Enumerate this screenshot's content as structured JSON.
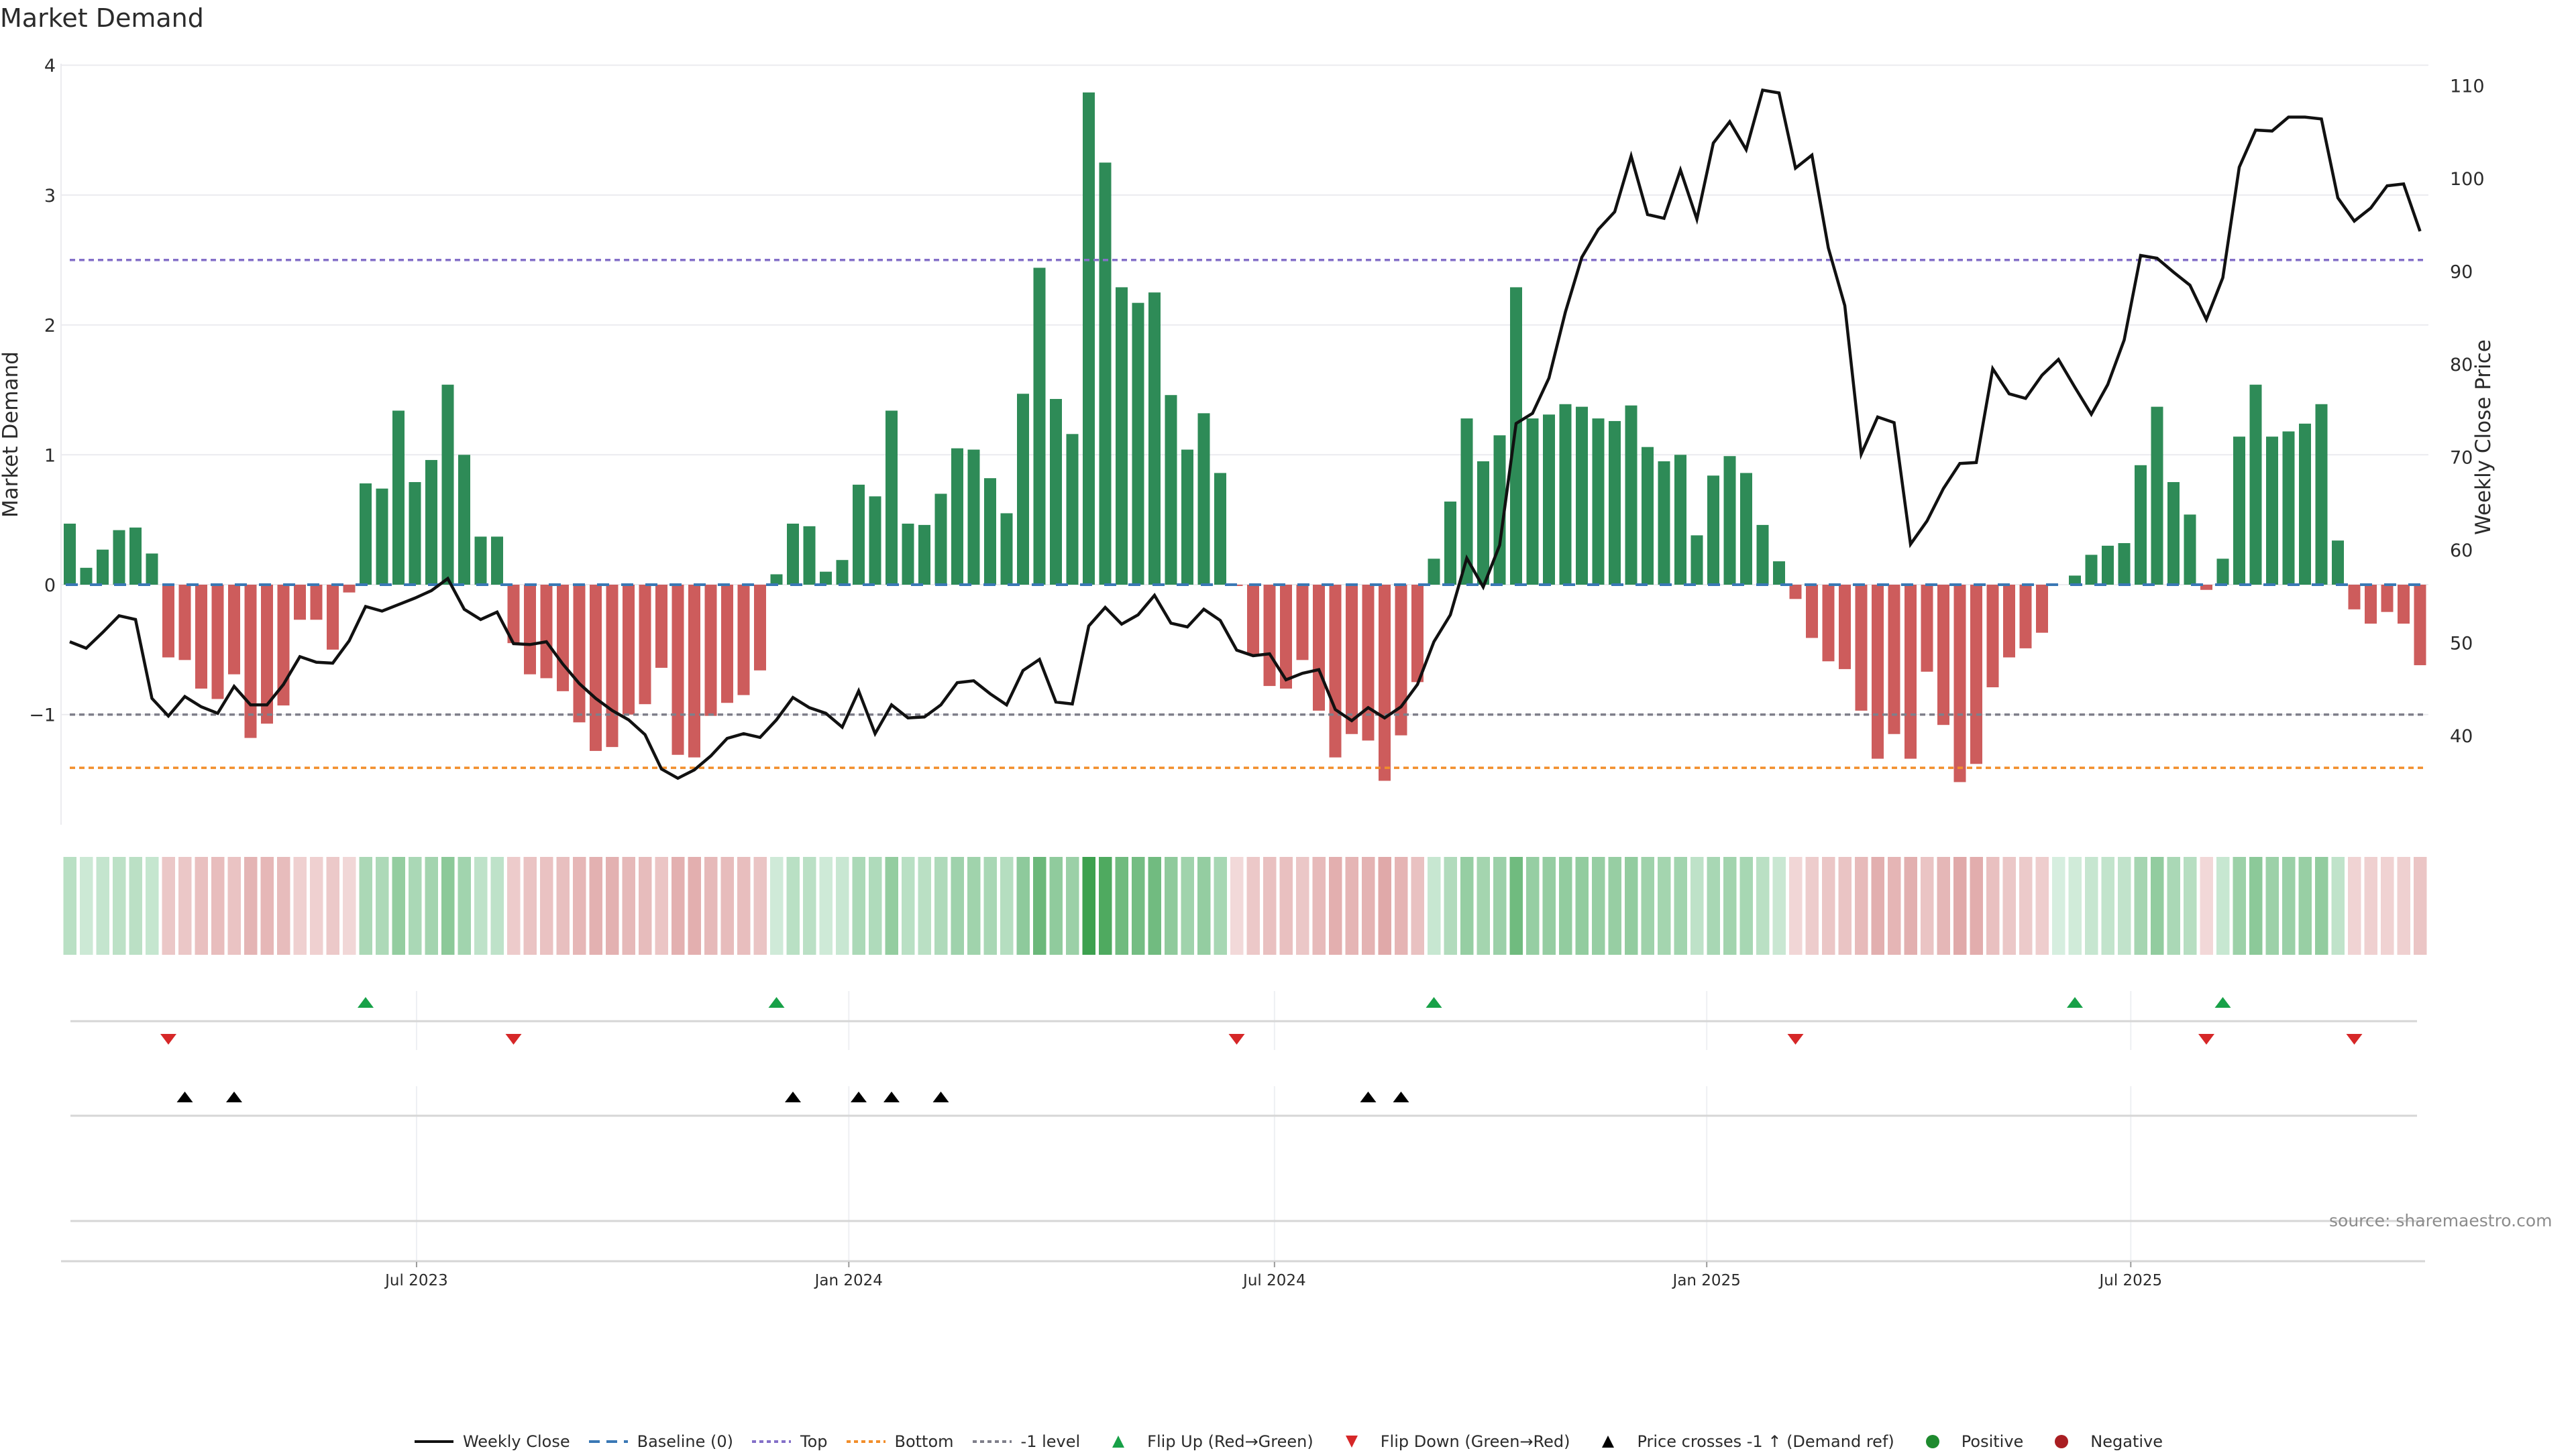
{
  "chart_data": {
    "type": "bar+line",
    "title": "Market Demand",
    "ylabel": "Market Demand",
    "y2label": "Weekly Close Price",
    "ylim": [
      -1.8,
      4.0
    ],
    "y2lim": [
      32.5,
      112.0
    ],
    "yticks": [
      "4",
      "3",
      "2",
      "1",
      "0",
      "−1"
    ],
    "ytick_values": [
      4,
      3,
      2,
      1,
      0,
      -1
    ],
    "y2ticks": [
      "110",
      "100",
      "90",
      "80",
      "70",
      "60",
      "50",
      "40"
    ],
    "y2tick_values": [
      110,
      100,
      90,
      80,
      70,
      60,
      50,
      40
    ],
    "xticks": [
      "Jul 2023",
      "Jan 2024",
      "Jul 2024",
      "Jan 2025",
      "Jul 2025"
    ],
    "xtick_week_index": [
      21.1,
      47.4,
      73.3,
      99.6,
      125.4
    ],
    "frequency": "weekly",
    "n_weeks": 144,
    "levels": {
      "baseline": 0,
      "top": 2.5,
      "bottom": -1.41,
      "minus_one": -1
    },
    "series": [
      {
        "name": "Market Demand",
        "type": "bar",
        "axis": "left",
        "values": [
          0.47,
          0.13,
          0.27,
          0.42,
          0.44,
          0.24,
          -0.56,
          -0.58,
          -0.8,
          -0.88,
          -0.69,
          -1.18,
          -1.07,
          -0.93,
          -0.27,
          -0.27,
          -0.5,
          -0.06,
          0.78,
          0.74,
          1.34,
          0.79,
          0.96,
          1.54,
          1.0,
          0.37,
          0.37,
          -0.45,
          -0.69,
          -0.72,
          -0.82,
          -1.06,
          -1.28,
          -1.25,
          -1.0,
          -0.92,
          -0.64,
          -1.31,
          -1.33,
          -1.01,
          -0.91,
          -0.85,
          -0.66,
          0.08,
          0.47,
          0.45,
          0.1,
          0.19,
          0.77,
          0.68,
          1.34,
          0.47,
          0.46,
          0.7,
          1.05,
          1.04,
          0.82,
          0.55,
          1.47,
          2.44,
          1.43,
          1.16,
          3.79,
          3.25,
          2.29,
          2.17,
          2.25,
          1.46,
          1.04,
          1.32,
          0.86,
          -0.01,
          -0.54,
          -0.78,
          -0.8,
          -0.58,
          -0.97,
          -1.33,
          -1.15,
          -1.2,
          -1.51,
          -1.16,
          -0.75,
          0.2,
          0.64,
          1.28,
          0.95,
          1.15,
          2.29,
          1.28,
          1.31,
          1.39,
          1.37,
          1.28,
          1.26,
          1.38,
          1.06,
          0.95,
          1.0,
          0.38,
          0.84,
          0.99,
          0.86,
          0.46,
          0.18,
          -0.11,
          -0.41,
          -0.59,
          -0.65,
          -0.97,
          -1.34,
          -1.15,
          -1.34,
          -0.67,
          -1.08,
          -1.52,
          -1.38,
          -0.79,
          -0.56,
          -0.49,
          -0.37,
          0.0,
          0.07,
          0.23,
          0.3,
          0.32,
          0.92,
          1.37,
          0.79,
          0.54,
          -0.04,
          0.2,
          1.14,
          1.54,
          1.14,
          1.18,
          1.24,
          1.39,
          0.34,
          -0.19,
          -0.3,
          -0.21,
          -0.3,
          -0.62
        ]
      },
      {
        "name": "Weekly Close",
        "type": "line",
        "axis": "right",
        "values": [
          50.1,
          49.4,
          51.1,
          52.9,
          52.5,
          44.0,
          42.1,
          44.2,
          43.1,
          42.4,
          45.3,
          43.3,
          43.3,
          45.5,
          48.5,
          47.9,
          47.8,
          50.2,
          53.9,
          53.4,
          54.1,
          54.8,
          55.6,
          56.9,
          53.6,
          52.5,
          53.3,
          49.9,
          49.8,
          50.1,
          47.7,
          45.6,
          44.0,
          42.7,
          41.7,
          40.1,
          36.4,
          35.4,
          36.3,
          37.8,
          39.7,
          40.2,
          39.8,
          41.7,
          44.1,
          43.0,
          42.4,
          40.9,
          44.8,
          40.2,
          43.3,
          41.9,
          42.0,
          43.3,
          45.7,
          45.9,
          44.5,
          43.3,
          47.0,
          48.2,
          43.6,
          43.4,
          51.8,
          53.8,
          52.0,
          53.0,
          55.1,
          52.1,
          51.7,
          53.6,
          52.4,
          49.2,
          48.6,
          48.8,
          46.0,
          46.7,
          47.1,
          42.8,
          41.6,
          43.0,
          41.9,
          43.1,
          45.5,
          50.1,
          53.0,
          59.1,
          56.0,
          60.5,
          73.6,
          74.7,
          78.5,
          85.6,
          91.5,
          94.5,
          96.4,
          102.4,
          96.1,
          95.7,
          100.9,
          95.6,
          103.8,
          106.1,
          103.1,
          109.5,
          109.2,
          101.1,
          102.5,
          92.5,
          86.3,
          70.3,
          74.3,
          73.7,
          60.6,
          63.1,
          66.6,
          69.3,
          69.4,
          79.5,
          76.8,
          76.3,
          78.8,
          80.5,
          77.5,
          74.6,
          77.8,
          82.6,
          91.7,
          91.4,
          89.9,
          88.5,
          84.8,
          89.3,
          101.2,
          105.2,
          105.1,
          106.6,
          106.6,
          106.4,
          97.9,
          95.4,
          96.8,
          99.2,
          99.4,
          94.3
        ]
      }
    ],
    "events": {
      "flip_up_week_index": [
        18,
        43,
        83,
        122,
        131
      ],
      "flip_down_week_index": [
        6,
        27,
        71,
        105,
        130,
        139
      ],
      "price_cross_week_index": [
        7,
        10,
        44,
        48,
        50,
        53,
        79,
        81
      ]
    },
    "legend": {
      "placement": "bottom-center",
      "items": [
        {
          "label": "Weekly Close",
          "kind": "line-solid",
          "color": "#111111"
        },
        {
          "label": "Baseline (0)",
          "kind": "line-dashed",
          "color": "#3a78b5"
        },
        {
          "label": "Top",
          "kind": "line-dotted",
          "color": "#8470c8"
        },
        {
          "label": "Bottom",
          "kind": "line-dotted",
          "color": "#f28e2b"
        },
        {
          "label": "-1 level",
          "kind": "line-dotted",
          "color": "#7f7f8a"
        },
        {
          "label": "Flip Up (Red→Green)",
          "kind": "triangle-up",
          "color": "#18a148"
        },
        {
          "label": "Flip Down (Green→Red)",
          "kind": "triangle-down",
          "color": "#d62728"
        },
        {
          "label": "Price crosses -1 ↑ (Demand ref)",
          "kind": "triangle-up",
          "color": "#000000"
        },
        {
          "label": "Positive",
          "kind": "dot",
          "color": "#1e8a2e"
        },
        {
          "label": "Negative",
          "kind": "dot",
          "color": "#a91e22"
        }
      ]
    },
    "source": "source: sharemaestro.com",
    "grid": true
  },
  "colors": {
    "positive_bar": "#2e8b57",
    "negative_bar": "#cd5c5c",
    "heat_pos_light": "#d6eedf",
    "heat_pos_dark": "#3da14f",
    "heat_neg_light": "#f2d9d9",
    "heat_neg_dark": "#e0a8a8",
    "gridline": "#ebebef",
    "row_line": "#d6d6d6"
  }
}
